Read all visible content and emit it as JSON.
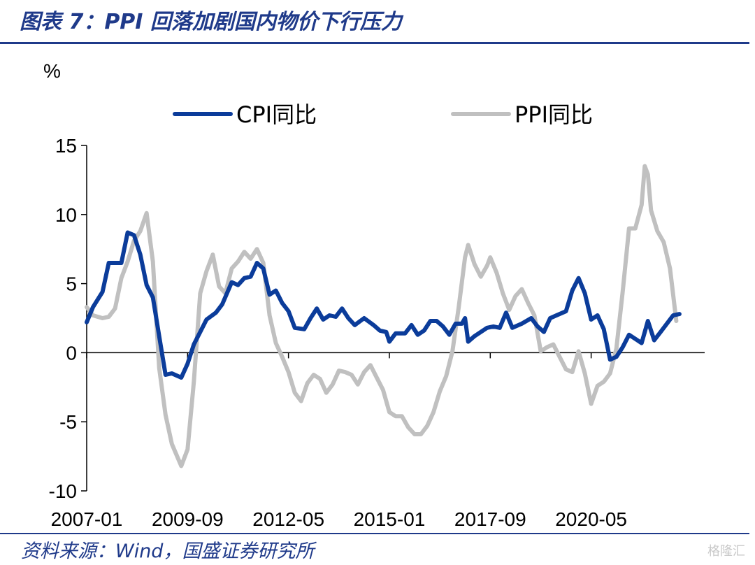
{
  "header": {
    "figure_title": "图表 7：PPI 回落加剧国内物价下行压力"
  },
  "footer": {
    "source": "资料来源：Wind，国盛证券研究所",
    "watermark": "格隆汇"
  },
  "colors": {
    "cpi": "#0b3c9a",
    "ppi": "#c0c0c0",
    "title": "#1f3a8a"
  },
  "chart_data": {
    "type": "line",
    "ylabel": "%",
    "ylim": [
      -10,
      15
    ],
    "yticks": [
      -10,
      -5,
      0,
      5,
      10,
      15
    ],
    "xticks": [
      "2007-01",
      "2009-09",
      "2012-05",
      "2015-01",
      "2017-09",
      "2020-05"
    ],
    "x_start": "2007-01",
    "x_end": "2023-05",
    "legend_position": "top",
    "series": [
      {
        "name": "CPI同比",
        "points": [
          [
            "2007-01",
            2.2
          ],
          [
            "2007-03",
            3.3
          ],
          [
            "2007-06",
            4.4
          ],
          [
            "2007-08",
            6.5
          ],
          [
            "2007-10",
            6.5
          ],
          [
            "2007-12",
            6.5
          ],
          [
            "2008-02",
            8.7
          ],
          [
            "2008-04",
            8.5
          ],
          [
            "2008-06",
            7.1
          ],
          [
            "2008-08",
            4.9
          ],
          [
            "2008-10",
            4.0
          ],
          [
            "2008-12",
            1.2
          ],
          [
            "2009-02",
            -1.6
          ],
          [
            "2009-04",
            -1.5
          ],
          [
            "2009-07",
            -1.8
          ],
          [
            "2009-09",
            -0.8
          ],
          [
            "2009-11",
            0.6
          ],
          [
            "2010-01",
            1.5
          ],
          [
            "2010-03",
            2.4
          ],
          [
            "2010-06",
            2.9
          ],
          [
            "2010-08",
            3.5
          ],
          [
            "2010-11",
            5.1
          ],
          [
            "2011-01",
            4.9
          ],
          [
            "2011-03",
            5.4
          ],
          [
            "2011-05",
            5.5
          ],
          [
            "2011-07",
            6.5
          ],
          [
            "2011-09",
            6.1
          ],
          [
            "2011-11",
            4.2
          ],
          [
            "2012-01",
            4.5
          ],
          [
            "2012-03",
            3.6
          ],
          [
            "2012-05",
            3.0
          ],
          [
            "2012-07",
            1.8
          ],
          [
            "2012-10",
            1.7
          ],
          [
            "2012-12",
            2.5
          ],
          [
            "2013-02",
            3.2
          ],
          [
            "2013-04",
            2.4
          ],
          [
            "2013-06",
            2.7
          ],
          [
            "2013-08",
            2.6
          ],
          [
            "2013-10",
            3.2
          ],
          [
            "2013-12",
            2.5
          ],
          [
            "2014-02",
            2.0
          ],
          [
            "2014-05",
            2.5
          ],
          [
            "2014-08",
            2.0
          ],
          [
            "2014-10",
            1.6
          ],
          [
            "2014-12",
            1.5
          ],
          [
            "2015-01",
            0.8
          ],
          [
            "2015-03",
            1.4
          ],
          [
            "2015-06",
            1.4
          ],
          [
            "2015-08",
            2.0
          ],
          [
            "2015-10",
            1.3
          ],
          [
            "2015-12",
            1.6
          ],
          [
            "2016-02",
            2.3
          ],
          [
            "2016-04",
            2.3
          ],
          [
            "2016-06",
            1.9
          ],
          [
            "2016-08",
            1.3
          ],
          [
            "2016-10",
            2.1
          ],
          [
            "2016-12",
            2.1
          ],
          [
            "2017-01",
            2.5
          ],
          [
            "2017-02",
            0.8
          ],
          [
            "2017-04",
            1.2
          ],
          [
            "2017-06",
            1.5
          ],
          [
            "2017-08",
            1.8
          ],
          [
            "2017-10",
            1.9
          ],
          [
            "2017-12",
            1.8
          ],
          [
            "2018-02",
            2.9
          ],
          [
            "2018-04",
            1.8
          ],
          [
            "2018-07",
            2.1
          ],
          [
            "2018-10",
            2.5
          ],
          [
            "2018-12",
            1.9
          ],
          [
            "2019-02",
            1.5
          ],
          [
            "2019-04",
            2.5
          ],
          [
            "2019-06",
            2.7
          ],
          [
            "2019-09",
            3.0
          ],
          [
            "2019-11",
            4.5
          ],
          [
            "2020-01",
            5.4
          ],
          [
            "2020-03",
            4.3
          ],
          [
            "2020-05",
            2.4
          ],
          [
            "2020-07",
            2.7
          ],
          [
            "2020-09",
            1.7
          ],
          [
            "2020-11",
            -0.5
          ],
          [
            "2021-01",
            -0.3
          ],
          [
            "2021-03",
            0.4
          ],
          [
            "2021-05",
            1.3
          ],
          [
            "2021-07",
            1.0
          ],
          [
            "2021-09",
            0.7
          ],
          [
            "2021-11",
            2.3
          ],
          [
            "2022-01",
            0.9
          ],
          [
            "2022-03",
            1.5
          ],
          [
            "2022-05",
            2.1
          ],
          [
            "2022-07",
            2.7
          ],
          [
            "2022-09",
            2.8
          ]
        ]
      },
      {
        "name": "PPI同比",
        "points": [
          [
            "2007-01",
            3.3
          ],
          [
            "2007-03",
            2.7
          ],
          [
            "2007-06",
            2.5
          ],
          [
            "2007-08",
            2.6
          ],
          [
            "2007-10",
            3.2
          ],
          [
            "2007-12",
            5.4
          ],
          [
            "2008-02",
            6.6
          ],
          [
            "2008-04",
            8.1
          ],
          [
            "2008-06",
            8.8
          ],
          [
            "2008-08",
            10.1
          ],
          [
            "2008-10",
            6.6
          ],
          [
            "2008-12",
            -1.1
          ],
          [
            "2009-02",
            -4.5
          ],
          [
            "2009-04",
            -6.6
          ],
          [
            "2009-07",
            -8.2
          ],
          [
            "2009-09",
            -7.0
          ],
          [
            "2009-11",
            -2.1
          ],
          [
            "2010-01",
            4.3
          ],
          [
            "2010-03",
            5.9
          ],
          [
            "2010-05",
            7.1
          ],
          [
            "2010-07",
            4.8
          ],
          [
            "2010-09",
            4.3
          ],
          [
            "2010-11",
            6.1
          ],
          [
            "2011-01",
            6.6
          ],
          [
            "2011-03",
            7.3
          ],
          [
            "2011-05",
            6.8
          ],
          [
            "2011-07",
            7.5
          ],
          [
            "2011-09",
            6.5
          ],
          [
            "2011-11",
            2.7
          ],
          [
            "2012-01",
            0.7
          ],
          [
            "2012-03",
            -0.3
          ],
          [
            "2012-05",
            -1.4
          ],
          [
            "2012-07",
            -2.9
          ],
          [
            "2012-09",
            -3.5
          ],
          [
            "2012-11",
            -2.2
          ],
          [
            "2013-01",
            -1.6
          ],
          [
            "2013-03",
            -1.9
          ],
          [
            "2013-05",
            -2.9
          ],
          [
            "2013-07",
            -2.3
          ],
          [
            "2013-09",
            -1.3
          ],
          [
            "2013-11",
            -1.4
          ],
          [
            "2014-01",
            -1.6
          ],
          [
            "2014-03",
            -2.3
          ],
          [
            "2014-05",
            -1.4
          ],
          [
            "2014-07",
            -0.9
          ],
          [
            "2014-09",
            -1.8
          ],
          [
            "2014-11",
            -2.7
          ],
          [
            "2015-01",
            -4.3
          ],
          [
            "2015-03",
            -4.6
          ],
          [
            "2015-05",
            -4.6
          ],
          [
            "2015-07",
            -5.4
          ],
          [
            "2015-09",
            -5.9
          ],
          [
            "2015-11",
            -5.9
          ],
          [
            "2016-01",
            -5.3
          ],
          [
            "2016-03",
            -4.3
          ],
          [
            "2016-05",
            -2.8
          ],
          [
            "2016-07",
            -1.7
          ],
          [
            "2016-09",
            0.1
          ],
          [
            "2016-11",
            3.3
          ],
          [
            "2017-01",
            6.9
          ],
          [
            "2017-02",
            7.8
          ],
          [
            "2017-04",
            6.4
          ],
          [
            "2017-06",
            5.5
          ],
          [
            "2017-08",
            6.3
          ],
          [
            "2017-09",
            6.9
          ],
          [
            "2017-11",
            5.8
          ],
          [
            "2018-01",
            4.3
          ],
          [
            "2018-03",
            3.1
          ],
          [
            "2018-05",
            4.1
          ],
          [
            "2018-07",
            4.6
          ],
          [
            "2018-09",
            3.6
          ],
          [
            "2018-11",
            2.7
          ],
          [
            "2019-01",
            0.1
          ],
          [
            "2019-03",
            0.4
          ],
          [
            "2019-05",
            0.6
          ],
          [
            "2019-07",
            -0.3
          ],
          [
            "2019-09",
            -1.2
          ],
          [
            "2019-11",
            -1.4
          ],
          [
            "2020-01",
            0.1
          ],
          [
            "2020-03",
            -1.5
          ],
          [
            "2020-05",
            -3.7
          ],
          [
            "2020-07",
            -2.4
          ],
          [
            "2020-09",
            -2.1
          ],
          [
            "2020-11",
            -1.5
          ],
          [
            "2021-01",
            0.3
          ],
          [
            "2021-03",
            4.4
          ],
          [
            "2021-05",
            9.0
          ],
          [
            "2021-07",
            9.0
          ],
          [
            "2021-09",
            10.7
          ],
          [
            "2021-10",
            13.5
          ],
          [
            "2021-11",
            12.9
          ],
          [
            "2021-12",
            10.3
          ],
          [
            "2022-02",
            8.8
          ],
          [
            "2022-04",
            8.0
          ],
          [
            "2022-06",
            6.1
          ],
          [
            "2022-08",
            2.3
          ]
        ]
      }
    ]
  }
}
